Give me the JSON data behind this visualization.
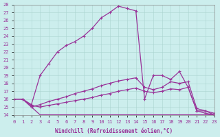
{
  "background_color": "#cceeed",
  "grid_color": "#aad4d0",
  "line_color": "#993399",
  "xlabel": "Windchill (Refroidissement éolien,°C)",
  "xlim": [
    0,
    23
  ],
  "ylim": [
    14,
    28
  ],
  "xticks": [
    0,
    1,
    2,
    3,
    4,
    5,
    6,
    7,
    8,
    9,
    10,
    11,
    12,
    13,
    14,
    15,
    16,
    17,
    18,
    19,
    20,
    21,
    22,
    23
  ],
  "yticks": [
    14,
    15,
    16,
    17,
    18,
    19,
    20,
    21,
    22,
    23,
    24,
    25,
    26,
    27,
    28
  ],
  "line1": {
    "x": [
      0,
      1,
      2,
      3,
      4,
      5,
      6,
      7,
      8,
      9,
      10,
      11,
      12,
      13,
      14,
      15,
      16,
      17,
      18,
      19,
      20,
      21,
      22,
      23
    ],
    "y": [
      16,
      16,
      15,
      14,
      14,
      14,
      14,
      14,
      14,
      14,
      14,
      14,
      14,
      14,
      14,
      14,
      14,
      14,
      14,
      14,
      14,
      14,
      14,
      14
    ],
    "marker": false
  },
  "line2": {
    "x": [
      0,
      1,
      2,
      3,
      4,
      5,
      6,
      7,
      8,
      9,
      10,
      11,
      12,
      13,
      14,
      15,
      16,
      17,
      18,
      19,
      20,
      21,
      22,
      23
    ],
    "y": [
      16,
      16,
      15.2,
      15.0,
      15.2,
      15.4,
      15.6,
      15.8,
      16.0,
      16.2,
      16.5,
      16.7,
      17.0,
      17.2,
      17.4,
      17.0,
      16.8,
      17.0,
      17.3,
      17.2,
      17.5,
      14.5,
      14.2,
      14.0
    ],
    "marker": true
  },
  "line3": {
    "x": [
      0,
      1,
      2,
      3,
      4,
      5,
      6,
      7,
      8,
      9,
      10,
      11,
      12,
      13,
      14,
      15,
      16,
      17,
      18,
      19,
      20,
      21,
      22,
      23
    ],
    "y": [
      16,
      16,
      15.0,
      15.3,
      15.7,
      16.0,
      16.3,
      16.7,
      17.0,
      17.3,
      17.7,
      18.0,
      18.3,
      18.5,
      18.7,
      17.5,
      17.2,
      17.5,
      18.2,
      18.0,
      18.2,
      14.8,
      14.5,
      14.2
    ],
    "marker": true
  },
  "line4": {
    "x": [
      0,
      1,
      2,
      3,
      4,
      5,
      6,
      7,
      8,
      9,
      10,
      11,
      12,
      13,
      14,
      15,
      16,
      17,
      18,
      19,
      20,
      21,
      22,
      23
    ],
    "y": [
      16,
      16,
      15.3,
      19.0,
      20.5,
      22.0,
      22.8,
      23.3,
      24.0,
      25.0,
      26.3,
      27.0,
      27.8,
      27.5,
      27.2,
      16.0,
      19.0,
      19.0,
      18.5,
      19.5,
      17.5,
      14.5,
      14.5,
      14.0
    ],
    "marker": true
  },
  "figsize": [
    3.2,
    2.0
  ],
  "dpi": 100,
  "label_fontsize": 5,
  "xlabel_fontsize": 5.5,
  "linewidth": 0.9,
  "markersize": 3.5,
  "markeredgewidth": 0.8
}
